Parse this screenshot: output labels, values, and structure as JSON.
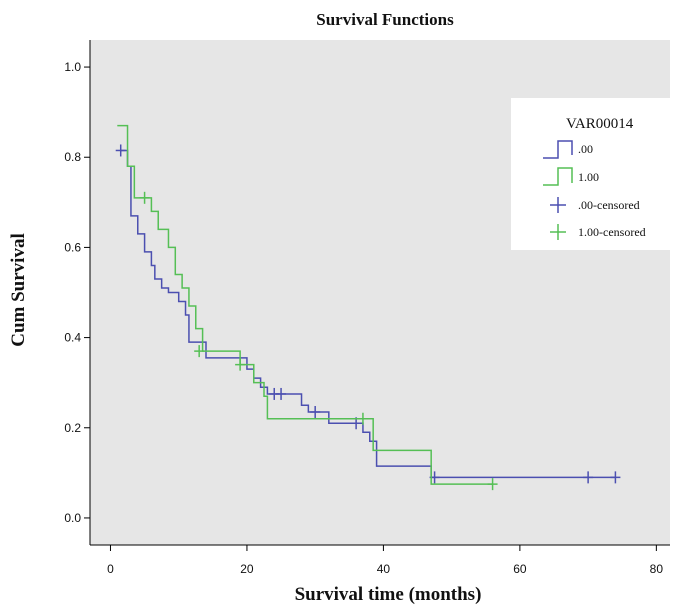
{
  "chart_data": {
    "type": "line",
    "title": "Survival Functions",
    "xlabel": "Survival time (months)",
    "ylabel": "Cum Survival",
    "xlim": [
      -3,
      82
    ],
    "ylim": [
      -0.06,
      1.06
    ],
    "xticks": [
      0,
      20,
      40,
      60,
      80
    ],
    "yticks": [
      0.0,
      0.2,
      0.4,
      0.6,
      0.8,
      1.0
    ],
    "xtick_labels": [
      "0",
      "20",
      "40",
      "60",
      "80"
    ],
    "ytick_labels": [
      "0.0",
      "0.2",
      "0.4",
      "0.6",
      "0.8",
      "1.0"
    ],
    "grid": false,
    "legend_position": "right",
    "legend": {
      "title": "VAR00014",
      "entries": [
        ".00",
        "1.00",
        ".00-censored",
        "1.00-censored"
      ]
    },
    "series": [
      {
        "name": ".00",
        "color": "#4b4fb0",
        "steps": [
          [
            1.5,
            0.815
          ],
          [
            2.5,
            0.78
          ],
          [
            3,
            0.67
          ],
          [
            4,
            0.63
          ],
          [
            5,
            0.59
          ],
          [
            6,
            0.56
          ],
          [
            6.5,
            0.53
          ],
          [
            7.5,
            0.51
          ],
          [
            8.5,
            0.5
          ],
          [
            10,
            0.48
          ],
          [
            11,
            0.45
          ],
          [
            11.5,
            0.39
          ],
          [
            14,
            0.355
          ],
          [
            20,
            0.33
          ],
          [
            21,
            0.31
          ],
          [
            22,
            0.29
          ],
          [
            23,
            0.275
          ],
          [
            28,
            0.25
          ],
          [
            29,
            0.235
          ],
          [
            32,
            0.21
          ],
          [
            37,
            0.19
          ],
          [
            38,
            0.17
          ],
          [
            39,
            0.115
          ],
          [
            47,
            0.09
          ],
          [
            74,
            0.09
          ]
        ],
        "censored": [
          [
            1.5,
            0.815
          ],
          [
            24,
            0.275
          ],
          [
            25,
            0.275
          ],
          [
            30,
            0.235
          ],
          [
            36,
            0.21
          ],
          [
            47.5,
            0.09
          ],
          [
            70,
            0.09
          ],
          [
            74,
            0.09
          ]
        ]
      },
      {
        "name": "1.00",
        "color": "#55bf55",
        "steps": [
          [
            1,
            0.87
          ],
          [
            2.5,
            0.78
          ],
          [
            3.5,
            0.71
          ],
          [
            6,
            0.68
          ],
          [
            7,
            0.64
          ],
          [
            8.5,
            0.6
          ],
          [
            9.5,
            0.54
          ],
          [
            10.5,
            0.51
          ],
          [
            11.5,
            0.47
          ],
          [
            12.5,
            0.42
          ],
          [
            13.5,
            0.37
          ],
          [
            19,
            0.34
          ],
          [
            21,
            0.3
          ],
          [
            22.5,
            0.27
          ],
          [
            23,
            0.22
          ],
          [
            30,
            0.22
          ],
          [
            38.5,
            0.15
          ],
          [
            47,
            0.075
          ],
          [
            56,
            0.075
          ]
        ],
        "censored": [
          [
            5,
            0.71
          ],
          [
            13,
            0.37
          ],
          [
            19,
            0.34
          ],
          [
            37,
            0.22
          ],
          [
            56,
            0.075
          ]
        ]
      }
    ]
  }
}
